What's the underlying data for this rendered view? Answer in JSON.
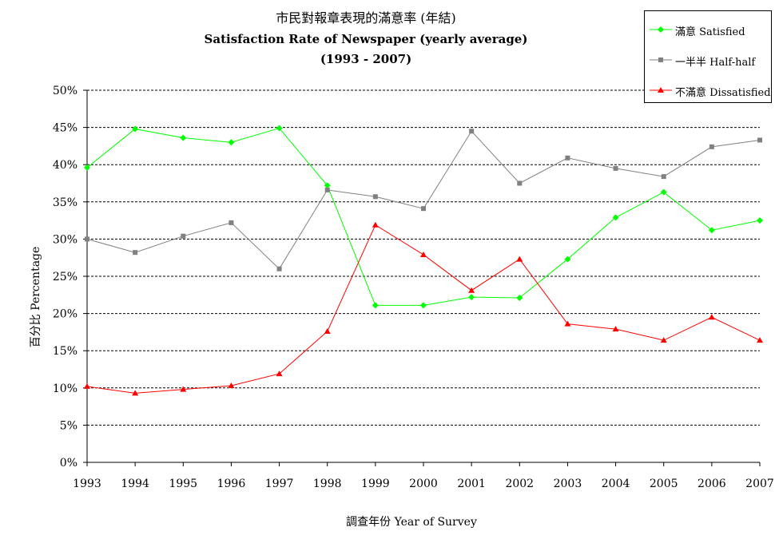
{
  "chart_data": {
    "type": "line",
    "title": "市民對報章表現的滿意率 (年結)",
    "subtitle": "Satisfaction Rate of Newspaper (yearly average)",
    "subtitle2": "(1993 - 2007)",
    "xlabel": "調查年份 Year of Survey",
    "ylabel": "百分比 Percentage",
    "ylim": [
      0,
      50
    ],
    "yticks": [
      "0%",
      "5%",
      "10%",
      "15%",
      "20%",
      "25%",
      "30%",
      "35%",
      "40%",
      "45%",
      "50%"
    ],
    "categories": [
      "1993",
      "1994",
      "1995",
      "1996",
      "1997",
      "1998",
      "1999",
      "2000",
      "2001",
      "2002",
      "2003",
      "2004",
      "2005",
      "2006",
      "2007"
    ],
    "grid": true,
    "legend_position": "top-right",
    "series": [
      {
        "name": "滿意 Satisfied",
        "color": "#00ff00",
        "marker": "diamond",
        "values": [
          39.6,
          44.8,
          43.6,
          43.0,
          44.9,
          37.2,
          21.1,
          21.1,
          22.2,
          22.1,
          27.3,
          32.9,
          36.3,
          31.2,
          32.5
        ]
      },
      {
        "name": "一半半 Half-half",
        "color": "#808080",
        "marker": "square",
        "values": [
          30.0,
          28.2,
          30.4,
          32.2,
          26.0,
          36.6,
          35.7,
          34.1,
          44.5,
          37.5,
          40.9,
          39.5,
          38.4,
          42.4,
          43.3
        ]
      },
      {
        "name": "不滿意 Dissatisfied",
        "color": "#ff0000",
        "marker": "triangle",
        "values": [
          10.2,
          9.3,
          9.8,
          10.3,
          11.9,
          17.6,
          31.9,
          27.9,
          23.1,
          27.3,
          18.6,
          17.9,
          16.4,
          19.5,
          16.4
        ]
      }
    ]
  }
}
